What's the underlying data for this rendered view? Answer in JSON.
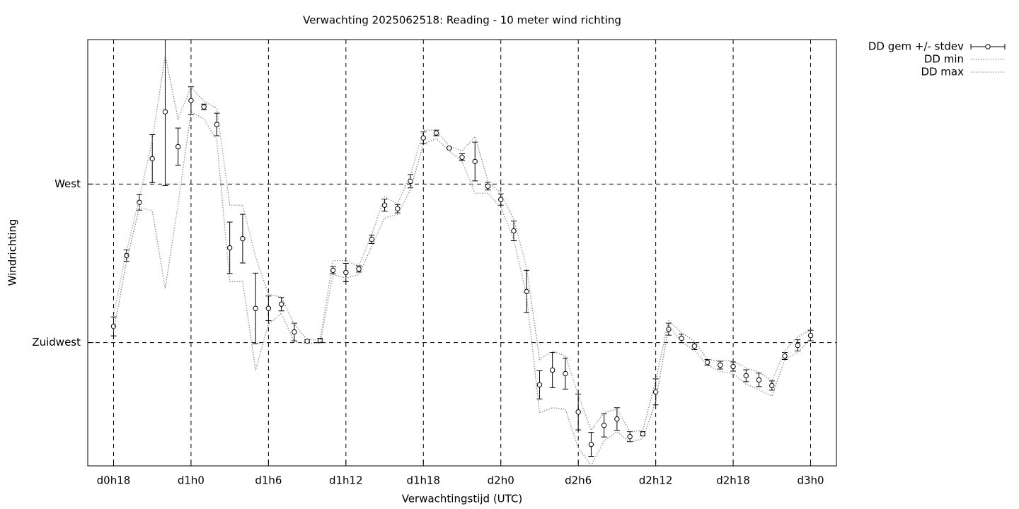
{
  "chart_data": {
    "type": "errorbar",
    "title": "Verwachting 2025062518: Reading - 10 meter wind richting",
    "x_label": "Verwachtingstijd (UTC)",
    "y_label": "Windrichting",
    "x": [
      18,
      19,
      20,
      21,
      22,
      23,
      24,
      25,
      26,
      27,
      28,
      29,
      30,
      31,
      32,
      33,
      34,
      35,
      36,
      37,
      38,
      39,
      40,
      41,
      42,
      43,
      44,
      45,
      46,
      47,
      48,
      49,
      50,
      51,
      52,
      53,
      54,
      55,
      56,
      57,
      58,
      59,
      60,
      61,
      62,
      63,
      64,
      65,
      66,
      67,
      68,
      69,
      70,
      71,
      72
    ],
    "xlim": [
      16,
      74
    ],
    "xticks": [
      {
        "value": 18,
        "label": "d0h18"
      },
      {
        "value": 24,
        "label": "d1h0"
      },
      {
        "value": 30,
        "label": "d1h6"
      },
      {
        "value": 36,
        "label": "d1h12"
      },
      {
        "value": 42,
        "label": "d1h18"
      },
      {
        "value": 48,
        "label": "d2h0"
      },
      {
        "value": 54,
        "label": "d2h6"
      },
      {
        "value": 60,
        "label": "d2h12"
      },
      {
        "value": 66,
        "label": "d2h18"
      },
      {
        "value": 72,
        "label": "d3h0"
      }
    ],
    "ylim": [
      190,
      311
    ],
    "yticks": [
      {
        "value": 225,
        "label": "Zuidwest"
      },
      {
        "value": 270,
        "label": "West"
      }
    ],
    "grid": true,
    "legend": "outside top right",
    "series": [
      {
        "name": "DD gem +/- stdev",
        "color": "#000000",
        "values": [
          229.6,
          249.7,
          264.8,
          277.2,
          290.5,
          280.6,
          293.7,
          291.9,
          286.9,
          251.9,
          254.5,
          234.7,
          234.7,
          235.9,
          228.0,
          225.4,
          225.6,
          245.5,
          244.9,
          245.9,
          254.3,
          264.0,
          263.0,
          270.8,
          283.1,
          284.5,
          280.2,
          277.6,
          276.4,
          269.4,
          265.6,
          256.7,
          239.5,
          213.0,
          217.2,
          216.2,
          205.3,
          196.1,
          201.5,
          203.3,
          198.3,
          199.1,
          211.0,
          228.8,
          226.2,
          224.0,
          219.4,
          218.6,
          218.2,
          215.6,
          214.4,
          212.8,
          221.2,
          224.2,
          227.0
        ],
        "errors": [
          2.7,
          1.6,
          2.2,
          6.8,
          20.9,
          5.3,
          3.9,
          0.8,
          3.2,
          7.3,
          6.9,
          10.0,
          3.5,
          1.9,
          2.5,
          0.4,
          0.6,
          1.0,
          2.6,
          0.9,
          1.2,
          1.7,
          1.2,
          1.9,
          1.7,
          0.8,
          0.2,
          1.0,
          5.5,
          1.1,
          1.6,
          2.8,
          6.0,
          4.0,
          5.0,
          4.4,
          5.1,
          3.4,
          3.3,
          3.2,
          1.4,
          0.6,
          3.7,
          1.7,
          1.2,
          1.0,
          0.8,
          1.1,
          1.3,
          1.7,
          1.9,
          1.3,
          1.0,
          1.6,
          1.5
        ]
      },
      {
        "name": "DD min",
        "color": "#808080",
        "values": [
          228.2,
          247.9,
          263.4,
          262.4,
          240.3,
          264.4,
          290.5,
          288.5,
          282.4,
          242.3,
          242.3,
          217.2,
          230.2,
          233.3,
          225.2,
          224.8,
          224.8,
          244.3,
          243.3,
          244.3,
          252.3,
          260.4,
          261.4,
          268.4,
          281.4,
          282.9,
          279.4,
          276.4,
          267.4,
          267.4,
          263.4,
          254.3,
          238.3,
          205.1,
          206.5,
          206.1,
          195.1,
          190.1,
          197.1,
          199.7,
          196.7,
          197.7,
          208.2,
          229.8,
          225.2,
          222.8,
          218.6,
          216.8,
          216.2,
          213.2,
          211.6,
          209.8,
          220.2,
          222.2,
          226.2
        ]
      },
      {
        "name": "DD max",
        "color": "#808080",
        "values": [
          232.7,
          250.9,
          266.0,
          282.4,
          306.5,
          288.5,
          297.5,
          293.5,
          291.5,
          264.0,
          264.0,
          249.3,
          238.7,
          237.9,
          230.2,
          225.8,
          225.8,
          248.3,
          248.3,
          246.7,
          255.7,
          266.4,
          264.4,
          272.4,
          285.3,
          285.3,
          280.8,
          279.4,
          283.5,
          270.8,
          267.4,
          260.0,
          246.3,
          220.2,
          222.6,
          221.2,
          210.2,
          200.1,
          205.1,
          206.1,
          199.7,
          200.1,
          214.2,
          231.2,
          227.8,
          225.4,
          220.2,
          219.8,
          219.8,
          217.8,
          216.6,
          214.2,
          222.6,
          226.6,
          228.6
        ]
      }
    ]
  }
}
